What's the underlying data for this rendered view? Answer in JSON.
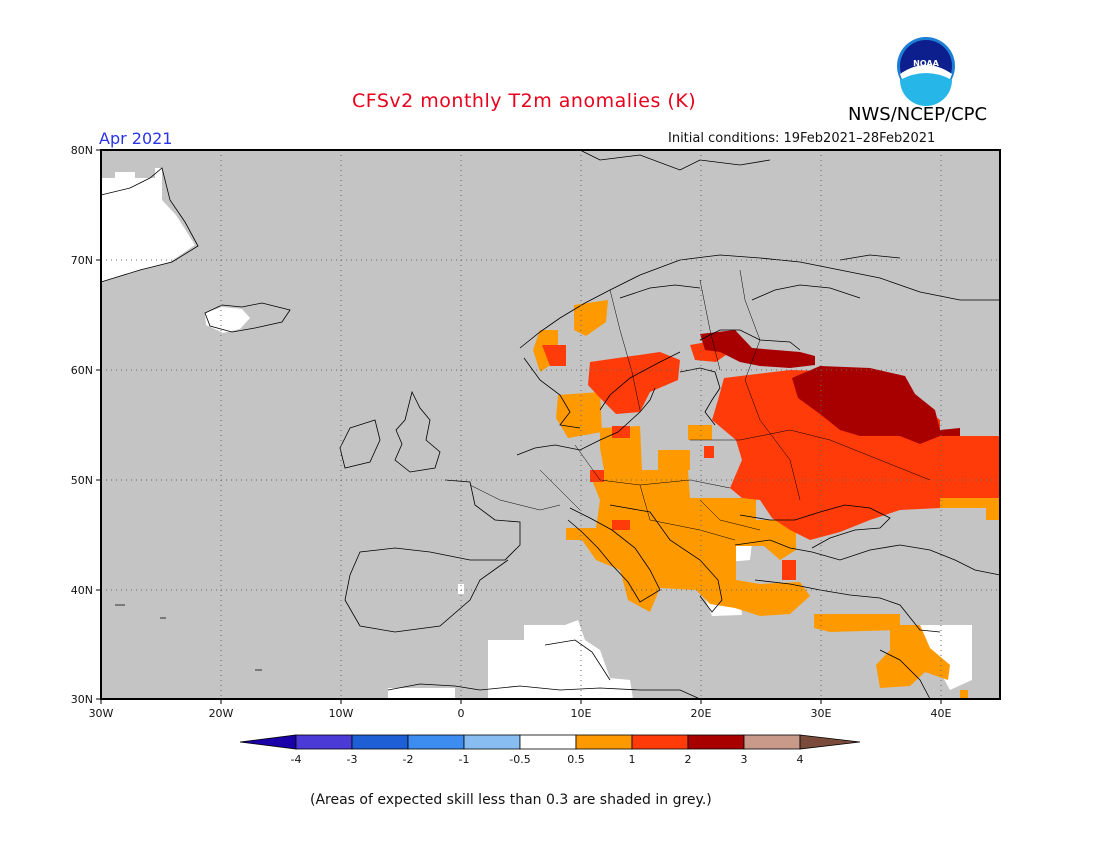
{
  "header": {
    "title": "CFSv2 monthly T2m anomalies (K)",
    "month": "Apr 2021",
    "initial_conditions": "Initial conditions: 19Feb2021–28Feb2021",
    "agency": "NWS/NCEP/CPC",
    "logo_text": "NOAA"
  },
  "footnote": "(Areas of expected skill less than 0.3 are shaded in grey.)",
  "map": {
    "lon_ticks": [
      "30W",
      "20W",
      "10W",
      "0",
      "10E",
      "20E",
      "30E",
      "40E"
    ],
    "lat_ticks": [
      "80N",
      "70N",
      "60N",
      "50N",
      "40N",
      "30N"
    ],
    "colors": {
      "no_skill": "#c4c4c4",
      "neutral": "#ffffff",
      "anom_0_5_to_1": "#ff9900",
      "anom_1_to_2": "#ff3b0a",
      "anom_2_to_3": "#a80000"
    }
  },
  "colorbar": {
    "labels": [
      "-4",
      "-3",
      "-2",
      "-1",
      "-0.5",
      "0.5",
      "1",
      "2",
      "3",
      "4"
    ],
    "colors": [
      "#1a00a8",
      "#4b3ad6",
      "#1f5fd6",
      "#3d8df0",
      "#88bdf2",
      "#ffffff",
      "#ff9900",
      "#ff3b0a",
      "#a80000",
      "#c9998a",
      "#7a4a3a"
    ]
  }
}
